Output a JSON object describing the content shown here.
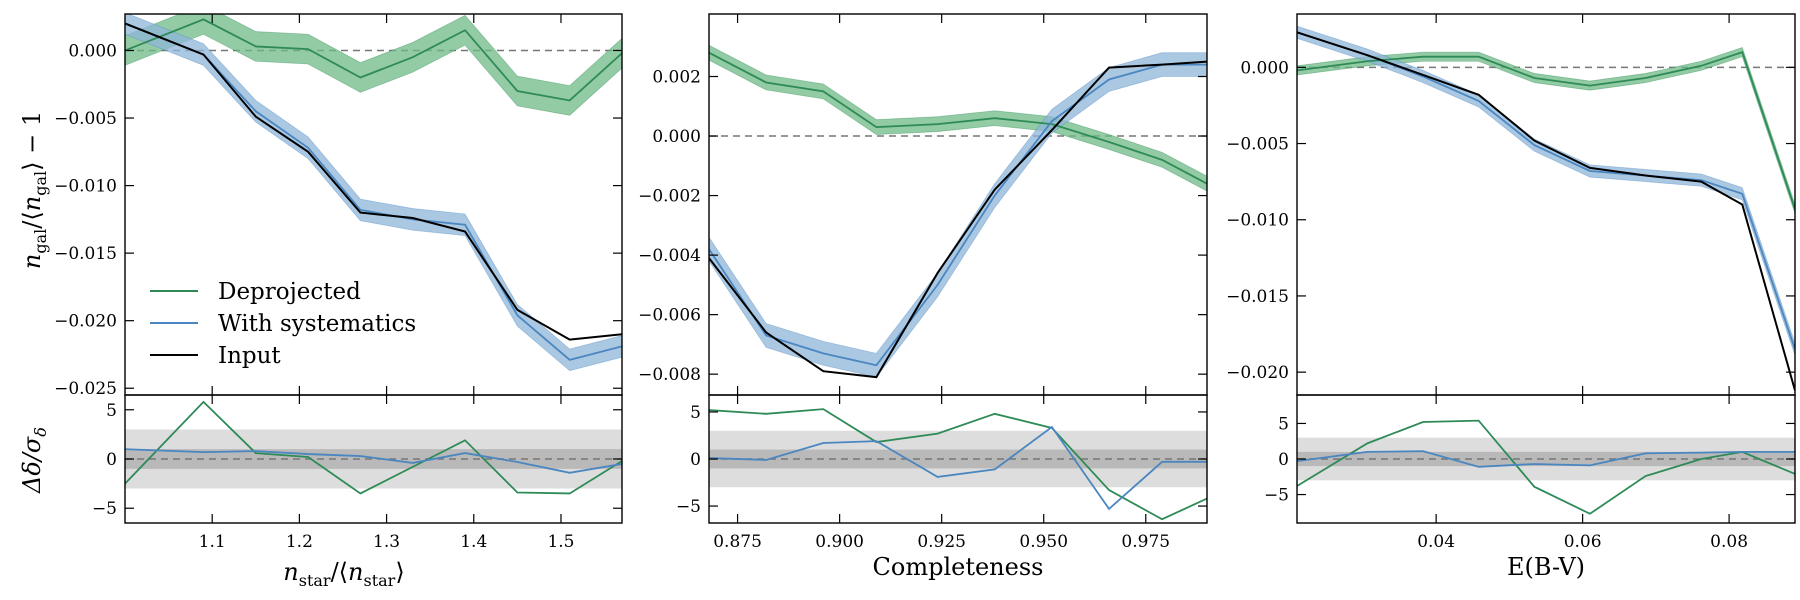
{
  "colors": {
    "deprojected": "#2e8b57",
    "deprojected_band": "#6fba86",
    "with_systematics": "#4a86c0",
    "with_systematics_band": "#8fb5da",
    "input": "#000000",
    "sigma1_band": "#b9b9b9",
    "sigma3_band": "#dddddd"
  },
  "legend": {
    "placement": "lower-left of first panel",
    "entries": [
      {
        "key": "deprojected",
        "label": "Deprojected"
      },
      {
        "key": "with_systematics",
        "label": "With systematics"
      },
      {
        "key": "input",
        "label": "Input"
      }
    ]
  },
  "labels": {
    "top_ylabel_main": "n",
    "top_ylabel_tail": "gal",
    "bottom_ylabel": "Δδ/σ",
    "bottom_ylabel_sub": "δ"
  },
  "chart_data": [
    {
      "type": "line",
      "panel": "top",
      "xlabel": "n_star/⟨n_star⟩",
      "ylabel": "n_gal/⟨n_gal⟩ − 1",
      "xlim": [
        1.0,
        1.57
      ],
      "ylim": [
        -0.0255,
        0.0027
      ],
      "xticks": [
        1.1,
        1.2,
        1.3,
        1.4,
        1.5
      ],
      "yticks": [
        0.0,
        -0.005,
        -0.01,
        -0.015,
        -0.02,
        -0.025
      ],
      "ytick_labels": [
        "0.000",
        "−0.005",
        "−0.010",
        "−0.015",
        "−0.020",
        "−0.025"
      ],
      "hline": 0,
      "x": [
        1.0,
        1.09,
        1.15,
        1.21,
        1.27,
        1.33,
        1.39,
        1.45,
        1.51,
        1.57
      ],
      "series": [
        {
          "key": "deprojected",
          "name": "Deprojected",
          "values": [
            0.0,
            0.0023,
            0.0003,
            0.0001,
            -0.002,
            -0.0005,
            0.0015,
            -0.003,
            -0.0037,
            -0.0002
          ],
          "band": 0.0011
        },
        {
          "key": "with_systematics",
          "name": "With systematics",
          "values": [
            0.002,
            -0.0003,
            -0.0045,
            -0.0072,
            -0.0118,
            -0.0125,
            -0.0129,
            -0.0196,
            -0.0229,
            -0.0219
          ],
          "band": 0.0008
        },
        {
          "key": "input",
          "name": "Input",
          "values": [
            0.002,
            -0.0003,
            -0.0049,
            -0.0075,
            -0.012,
            -0.0124,
            -0.0134,
            -0.0192,
            -0.0214,
            -0.021
          ]
        }
      ]
    },
    {
      "type": "line",
      "panel": "top",
      "xlabel": "Completeness",
      "ylabel": "",
      "xlim": [
        0.868,
        0.99
      ],
      "ylim": [
        -0.0087,
        0.0041
      ],
      "xticks": [
        0.875,
        0.9,
        0.925,
        0.95,
        0.975
      ],
      "xtick_labels": [
        "0.875",
        "0.900",
        "0.925",
        "0.950",
        "0.975"
      ],
      "yticks": [
        0.002,
        0.0,
        -0.002,
        -0.004,
        -0.006,
        -0.008
      ],
      "ytick_labels": [
        "0.002",
        "0.000",
        "−0.002",
        "−0.004",
        "−0.006",
        "−0.008"
      ],
      "hline": 0,
      "x": [
        0.868,
        0.882,
        0.896,
        0.909,
        0.924,
        0.938,
        0.952,
        0.966,
        0.979,
        0.99
      ],
      "series": [
        {
          "key": "deprojected",
          "name": "Deprojected",
          "values": [
            0.0028,
            0.0018,
            0.0015,
            0.0003,
            0.0004,
            0.0006,
            0.0004,
            -0.0002,
            -0.0008,
            -0.0016
          ],
          "band": 0.00025
        },
        {
          "key": "with_systematics",
          "name": "With systematics",
          "values": [
            -0.0038,
            -0.0067,
            -0.0073,
            -0.0077,
            -0.005,
            -0.002,
            0.0005,
            0.0019,
            0.0024,
            0.0024
          ],
          "band": 0.0004
        },
        {
          "key": "input",
          "name": "Input",
          "values": [
            -0.0041,
            -0.0066,
            -0.0079,
            -0.0081,
            -0.0046,
            -0.0018,
            0.0002,
            0.0023,
            0.0024,
            0.0025
          ]
        }
      ]
    },
    {
      "type": "line",
      "panel": "top",
      "xlabel": "E(B-V)",
      "ylabel": "",
      "xlim": [
        0.021,
        0.089
      ],
      "ylim": [
        -0.0215,
        0.0035
      ],
      "xticks": [
        0.04,
        0.06,
        0.08
      ],
      "xtick_labels": [
        "0.04",
        "0.06",
        "0.08"
      ],
      "yticks": [
        0.0,
        -0.005,
        -0.01,
        -0.015,
        -0.02
      ],
      "ytick_labels": [
        "0.000",
        "−0.005",
        "−0.010",
        "−0.015",
        "−0.020"
      ],
      "hline": 0,
      "x": [
        0.021,
        0.0306,
        0.0382,
        0.0458,
        0.0534,
        0.061,
        0.0686,
        0.0762,
        0.0818,
        0.089
      ],
      "series": [
        {
          "key": "deprojected",
          "name": "Deprojected",
          "values": [
            -0.0002,
            0.0004,
            0.0007,
            0.0007,
            -0.0007,
            -0.0012,
            -0.0007,
            0.0001,
            0.001,
            -0.0093
          ],
          "band": 0.0003
        },
        {
          "key": "with_systematics",
          "name": "With systematics",
          "values": [
            0.0023,
            0.0008,
            -0.0006,
            -0.0022,
            -0.0051,
            -0.0068,
            -0.0071,
            -0.0074,
            -0.0083,
            -0.0185
          ],
          "band": 0.0004
        },
        {
          "key": "input",
          "name": "Input",
          "values": [
            0.0023,
            0.0008,
            -0.0005,
            -0.0018,
            -0.0048,
            -0.0066,
            -0.0071,
            -0.0075,
            -0.009,
            -0.0212
          ]
        }
      ]
    },
    {
      "type": "line",
      "panel": "bottom",
      "ylabel": "Δδ/σ_δ",
      "xlim": [
        1.0,
        1.57
      ],
      "ylim": [
        -6.5,
        6.5
      ],
      "yticks": [
        5,
        0,
        -5
      ],
      "ytick_labels": [
        "5",
        "0",
        "−5"
      ],
      "bands": [
        3,
        1
      ],
      "hline": 0,
      "x": [
        1.0,
        1.09,
        1.15,
        1.21,
        1.27,
        1.33,
        1.39,
        1.45,
        1.51,
        1.57
      ],
      "series": [
        {
          "key": "deprojected",
          "name": "Deprojected",
          "values": [
            -2.5,
            5.8,
            0.6,
            0.2,
            -3.5,
            -0.8,
            1.9,
            -3.4,
            -3.5,
            -0.2
          ]
        },
        {
          "key": "with_systematics",
          "name": "With systematics",
          "values": [
            1.0,
            0.7,
            0.8,
            0.5,
            0.3,
            -0.4,
            0.6,
            -0.3,
            -1.4,
            -0.5
          ]
        }
      ]
    },
    {
      "type": "line",
      "panel": "bottom",
      "ylabel": "",
      "xlim": [
        0.868,
        0.99
      ],
      "ylim": [
        -6.8,
        6.8
      ],
      "yticks": [
        5,
        0,
        -5
      ],
      "ytick_labels": [
        "5",
        "0",
        "−5"
      ],
      "bands": [
        3,
        1
      ],
      "hline": 0,
      "x": [
        0.868,
        0.882,
        0.896,
        0.909,
        0.924,
        0.938,
        0.952,
        0.966,
        0.979,
        0.99
      ],
      "series": [
        {
          "key": "deprojected",
          "name": "Deprojected",
          "values": [
            5.2,
            4.8,
            5.3,
            1.8,
            2.7,
            4.8,
            3.3,
            -3.3,
            -6.4,
            -4.2
          ]
        },
        {
          "key": "with_systematics",
          "name": "With systematics",
          "values": [
            0.1,
            -0.1,
            1.7,
            1.9,
            -1.9,
            -1.1,
            3.4,
            -5.3,
            -0.3,
            -0.3
          ]
        }
      ]
    },
    {
      "type": "line",
      "panel": "bottom",
      "ylabel": "",
      "xlim": [
        0.021,
        0.089
      ],
      "ylim": [
        -9.0,
        9.0
      ],
      "yticks": [
        5,
        0,
        -5
      ],
      "ytick_labels": [
        "5",
        "0",
        "−5"
      ],
      "bands": [
        3,
        1
      ],
      "hline": 0,
      "x": [
        0.021,
        0.0306,
        0.0382,
        0.0458,
        0.0534,
        0.061,
        0.0686,
        0.0762,
        0.0818,
        0.089
      ],
      "series": [
        {
          "key": "deprojected",
          "name": "Deprojected",
          "values": [
            -3.8,
            2.2,
            5.2,
            5.4,
            -3.9,
            -7.7,
            -2.4,
            0.0,
            1.0,
            -2.1
          ]
        },
        {
          "key": "with_systematics",
          "name": "With systematics",
          "values": [
            -0.3,
            1.0,
            1.1,
            -1.1,
            -0.7,
            -0.9,
            0.8,
            0.9,
            1.0,
            1.0
          ]
        }
      ]
    }
  ]
}
